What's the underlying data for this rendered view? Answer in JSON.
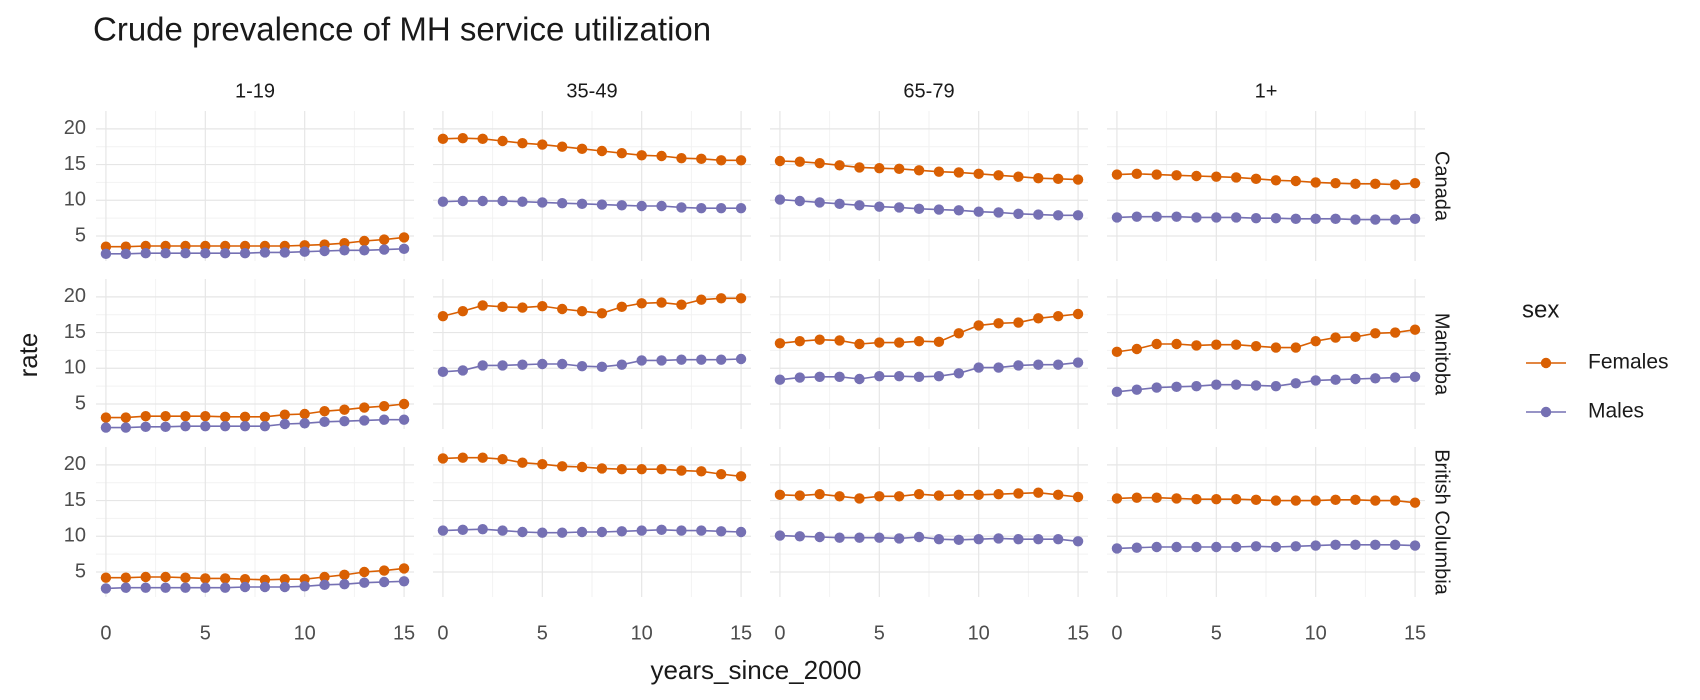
{
  "chart_data": {
    "type": "line",
    "title": "Crude prevalence of MH service utilization",
    "x_label": "years_since_2000",
    "y_label": "rate",
    "legend_title": "sex",
    "series": [
      {
        "name": "Females",
        "color": "#d95f02"
      },
      {
        "name": "Males",
        "color": "#7570b3"
      }
    ],
    "columns": [
      "1-19",
      "35-49",
      "65-79",
      "1+"
    ],
    "rows": [
      "Canada",
      "Manitoba",
      "British Columbia"
    ],
    "x": [
      0,
      1,
      2,
      3,
      4,
      5,
      6,
      7,
      8,
      9,
      10,
      11,
      12,
      13,
      14,
      15
    ],
    "xlim": [
      -0.5,
      15.5
    ],
    "xticks": [
      0,
      5,
      10,
      15
    ],
    "ylim": [
      1.5,
      22.5
    ],
    "yticks": [
      5,
      10,
      15,
      20
    ],
    "grid": true,
    "panels": [
      [
        [
          [
            3.5,
            3.5,
            3.6,
            3.6,
            3.6,
            3.6,
            3.6,
            3.6,
            3.6,
            3.6,
            3.7,
            3.8,
            4.0,
            4.3,
            4.5,
            4.8
          ],
          [
            2.5,
            2.5,
            2.6,
            2.6,
            2.6,
            2.6,
            2.6,
            2.6,
            2.7,
            2.7,
            2.8,
            2.9,
            3.0,
            3.0,
            3.1,
            3.2
          ]
        ],
        [
          [
            18.6,
            18.7,
            18.6,
            18.3,
            18.0,
            17.8,
            17.5,
            17.2,
            16.9,
            16.6,
            16.3,
            16.2,
            15.9,
            15.8,
            15.6,
            15.6
          ],
          [
            9.8,
            9.9,
            9.9,
            9.9,
            9.8,
            9.7,
            9.6,
            9.5,
            9.4,
            9.3,
            9.2,
            9.2,
            9.0,
            8.9,
            8.9,
            8.9
          ]
        ],
        [
          [
            15.5,
            15.4,
            15.2,
            14.9,
            14.6,
            14.5,
            14.4,
            14.2,
            14.0,
            13.9,
            13.7,
            13.5,
            13.3,
            13.1,
            13.0,
            12.9
          ],
          [
            10.1,
            9.9,
            9.7,
            9.5,
            9.3,
            9.1,
            9.0,
            8.8,
            8.7,
            8.6,
            8.4,
            8.3,
            8.1,
            8.0,
            7.9,
            7.9
          ]
        ],
        [
          [
            13.6,
            13.7,
            13.6,
            13.5,
            13.4,
            13.3,
            13.2,
            13.0,
            12.8,
            12.7,
            12.5,
            12.4,
            12.3,
            12.3,
            12.2,
            12.4
          ],
          [
            7.6,
            7.7,
            7.7,
            7.7,
            7.6,
            7.6,
            7.6,
            7.5,
            7.5,
            7.4,
            7.4,
            7.4,
            7.3,
            7.3,
            7.3,
            7.4
          ]
        ]
      ],
      [
        [
          [
            3.1,
            3.1,
            3.3,
            3.3,
            3.3,
            3.3,
            3.2,
            3.2,
            3.2,
            3.5,
            3.6,
            4.0,
            4.2,
            4.5,
            4.7,
            5.0
          ],
          [
            1.7,
            1.7,
            1.8,
            1.8,
            1.9,
            1.9,
            1.9,
            1.9,
            1.9,
            2.2,
            2.3,
            2.5,
            2.6,
            2.7,
            2.8,
            2.8
          ]
        ],
        [
          [
            17.3,
            18.0,
            18.8,
            18.6,
            18.5,
            18.7,
            18.3,
            18.0,
            17.7,
            18.6,
            19.1,
            19.2,
            18.9,
            19.6,
            19.8,
            19.8
          ],
          [
            9.5,
            9.7,
            10.4,
            10.4,
            10.5,
            10.6,
            10.6,
            10.3,
            10.2,
            10.5,
            11.1,
            11.1,
            11.2,
            11.2,
            11.2,
            11.3
          ]
        ],
        [
          [
            13.5,
            13.8,
            14.0,
            13.9,
            13.4,
            13.6,
            13.6,
            13.8,
            13.7,
            14.9,
            16.0,
            16.3,
            16.4,
            17.0,
            17.3,
            17.6
          ],
          [
            8.4,
            8.7,
            8.8,
            8.8,
            8.5,
            8.9,
            8.9,
            8.8,
            8.9,
            9.3,
            10.1,
            10.1,
            10.4,
            10.5,
            10.5,
            10.8
          ]
        ],
        [
          [
            12.3,
            12.7,
            13.4,
            13.4,
            13.2,
            13.3,
            13.3,
            13.1,
            12.9,
            12.9,
            13.8,
            14.3,
            14.4,
            14.9,
            15.0,
            15.4
          ],
          [
            6.7,
            7.0,
            7.3,
            7.4,
            7.5,
            7.7,
            7.7,
            7.6,
            7.5,
            7.9,
            8.3,
            8.4,
            8.5,
            8.6,
            8.7,
            8.8
          ]
        ]
      ],
      [
        [
          [
            4.2,
            4.2,
            4.3,
            4.3,
            4.2,
            4.1,
            4.1,
            4.0,
            3.9,
            4.0,
            4.0,
            4.3,
            4.6,
            5.0,
            5.2,
            5.5
          ],
          [
            2.7,
            2.8,
            2.8,
            2.8,
            2.8,
            2.8,
            2.8,
            2.9,
            2.9,
            2.9,
            3.0,
            3.2,
            3.3,
            3.5,
            3.6,
            3.7
          ]
        ],
        [
          [
            20.9,
            21.0,
            21.0,
            20.8,
            20.3,
            20.1,
            19.8,
            19.7,
            19.5,
            19.4,
            19.4,
            19.4,
            19.2,
            19.1,
            18.7,
            18.4
          ],
          [
            10.8,
            10.9,
            11.0,
            10.8,
            10.6,
            10.5,
            10.5,
            10.6,
            10.6,
            10.7,
            10.8,
            10.9,
            10.8,
            10.8,
            10.7,
            10.6
          ]
        ],
        [
          [
            15.8,
            15.7,
            15.9,
            15.6,
            15.3,
            15.6,
            15.6,
            15.9,
            15.7,
            15.8,
            15.8,
            15.9,
            16.0,
            16.1,
            15.8,
            15.5
          ],
          [
            10.1,
            10.0,
            9.9,
            9.8,
            9.8,
            9.8,
            9.7,
            9.9,
            9.6,
            9.5,
            9.6,
            9.7,
            9.6,
            9.6,
            9.6,
            9.3
          ]
        ],
        [
          [
            15.3,
            15.4,
            15.4,
            15.3,
            15.2,
            15.2,
            15.2,
            15.1,
            15.0,
            15.0,
            15.0,
            15.1,
            15.1,
            15.0,
            15.0,
            14.7
          ],
          [
            8.3,
            8.4,
            8.5,
            8.5,
            8.5,
            8.5,
            8.5,
            8.6,
            8.5,
            8.6,
            8.7,
            8.8,
            8.8,
            8.8,
            8.8,
            8.7
          ]
        ]
      ]
    ]
  }
}
